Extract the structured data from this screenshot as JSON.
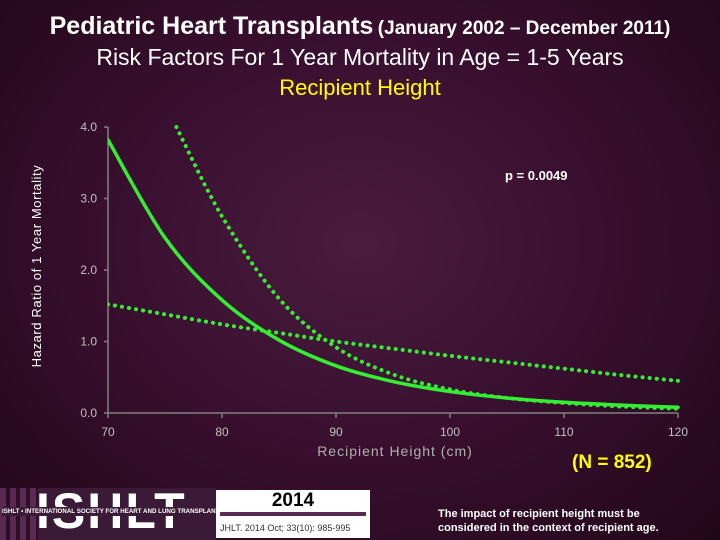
{
  "header": {
    "title_main": "Pediatric Heart Transplants",
    "title_sub": "(January 2002 – December 2011)",
    "subtitle": "Risk Factors For 1 Year Mortality in Age = 1-5 Years",
    "variable": "Recipient Height"
  },
  "chart_data": {
    "type": "line",
    "xlabel": "Recipient Height (cm)",
    "ylabel": "Hazard Ratio of 1 Year Mortality",
    "xlim": [
      70,
      120
    ],
    "ylim": [
      0,
      4
    ],
    "x_ticks": [
      "70",
      "80",
      "90",
      "100",
      "110",
      "120"
    ],
    "y_ticks": [
      "0.0",
      "1.0",
      "2.0",
      "3.0",
      "4.0"
    ],
    "annotation": "p = 0.0049",
    "grid": false,
    "series": [
      {
        "style": "solid",
        "x": [
          70,
          75,
          80,
          85,
          90,
          95,
          100,
          105,
          110,
          115,
          120
        ],
        "y": [
          3.82,
          2.45,
          1.58,
          1.02,
          0.66,
          0.44,
          0.3,
          0.21,
          0.15,
          0.11,
          0.08
        ]
      },
      {
        "style": "dotted",
        "x": [
          76,
          80,
          85,
          90,
          95,
          100,
          105,
          110,
          115,
          120
        ],
        "y": [
          4.0,
          2.75,
          1.6,
          0.92,
          0.54,
          0.33,
          0.21,
          0.14,
          0.09,
          0.06
        ]
      },
      {
        "style": "dotted",
        "x": [
          70,
          75,
          80,
          85,
          90,
          95,
          100,
          105,
          110,
          115,
          120
        ],
        "y": [
          1.52,
          1.38,
          1.24,
          1.12,
          1.0,
          0.9,
          0.8,
          0.71,
          0.62,
          0.53,
          0.45
        ]
      }
    ],
    "line_color": "#33ee33",
    "axis_color": "#808080"
  },
  "footer": {
    "n_label": "(N = 852)",
    "note_line1": "The impact of recipient height must be",
    "note_line2": "considered in the context of recipient age.",
    "logo_text": "ISHLT",
    "logo_tagline": "ISHLT • INTERNATIONAL SOCIETY FOR HEART AND LUNG TRANSPLANTATION",
    "year": "2014",
    "citation": "JHLT. 2014 Oct; 33(10): 985-995"
  }
}
